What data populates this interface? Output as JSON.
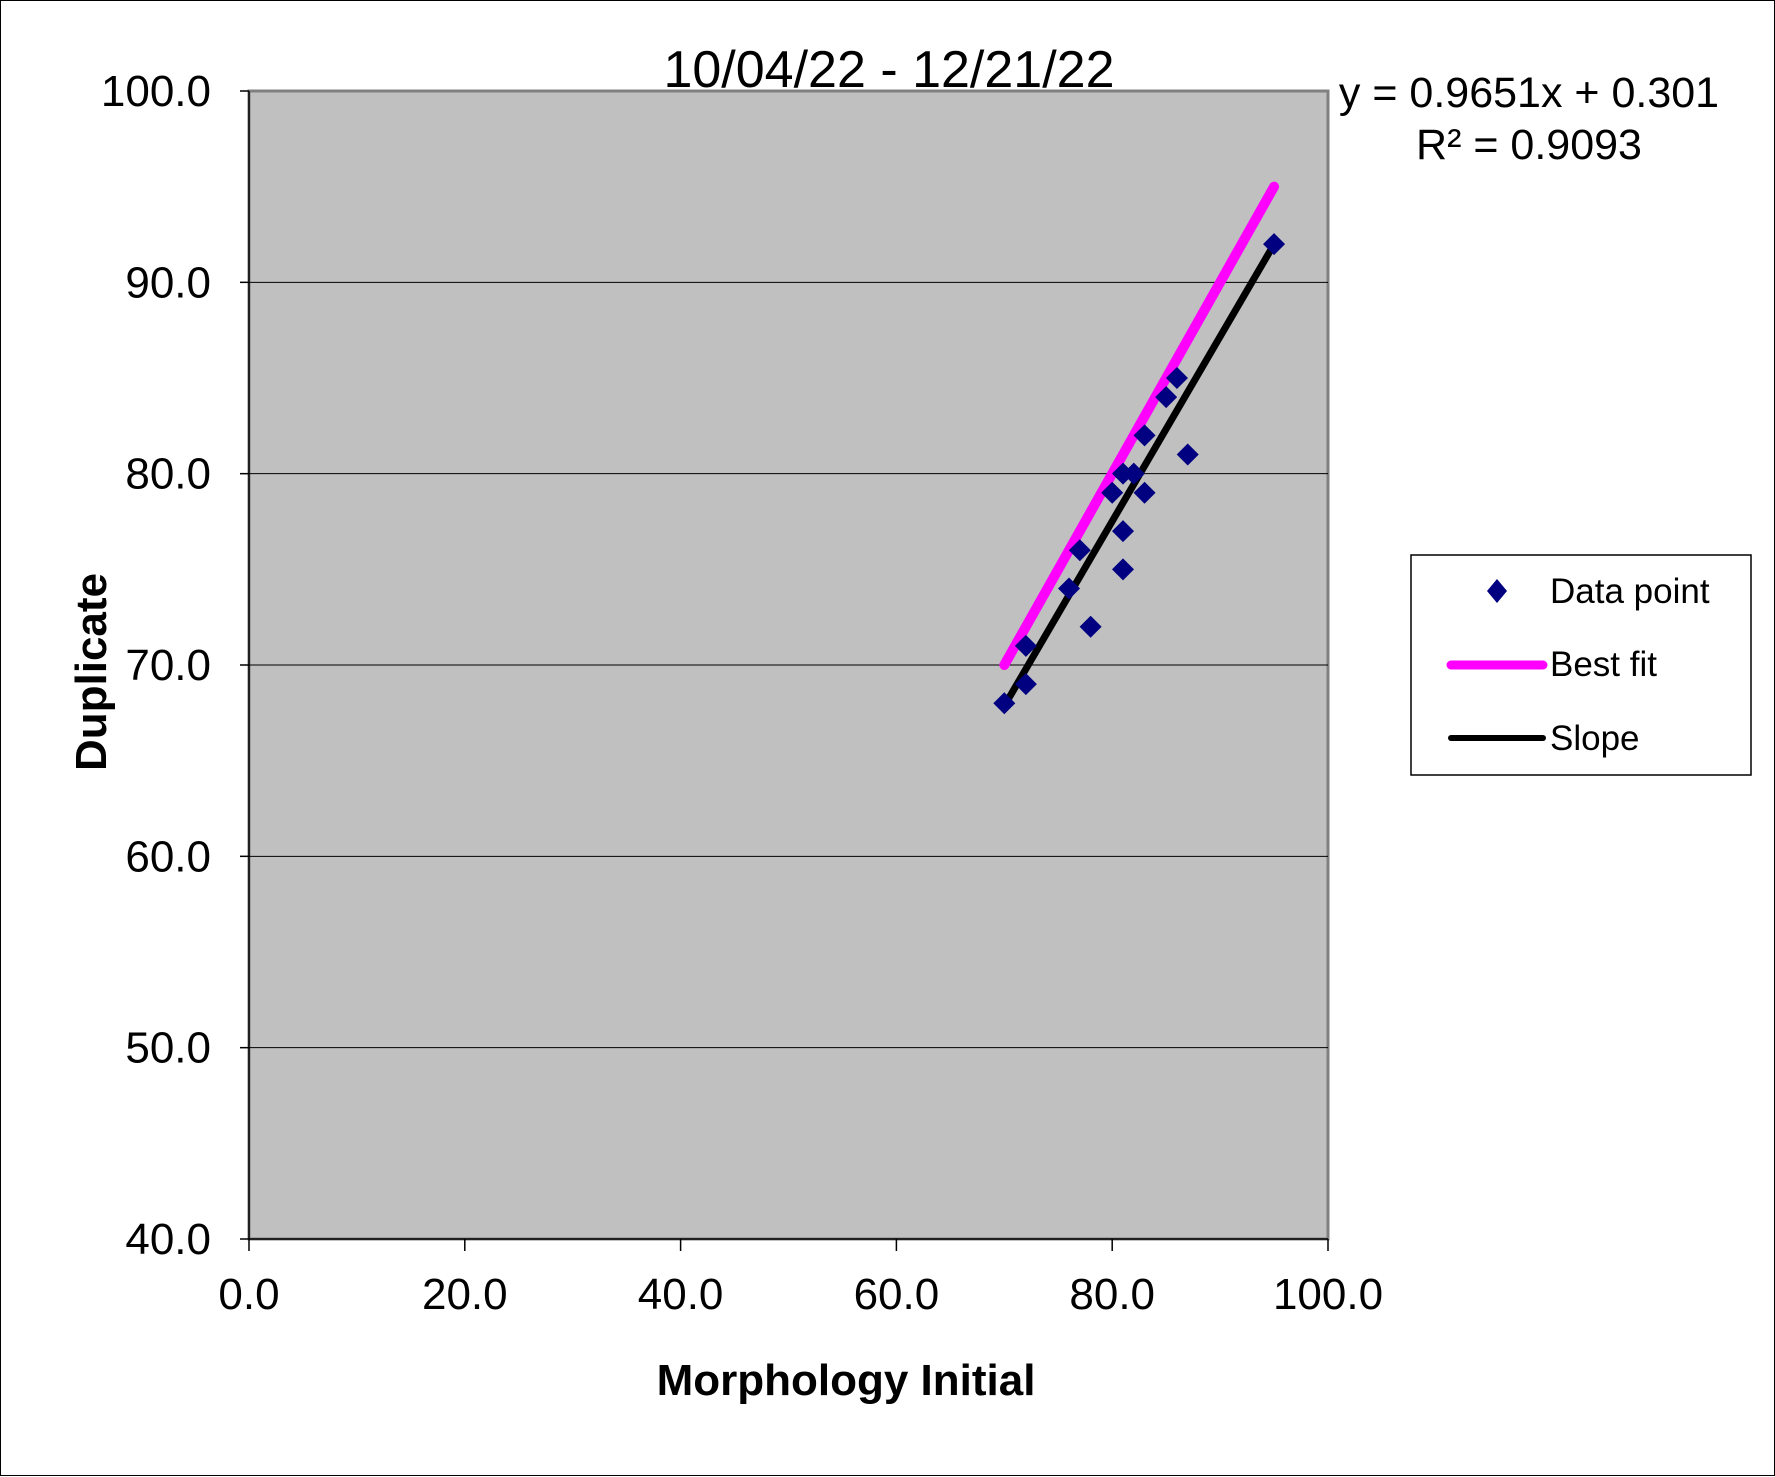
{
  "chart_data": {
    "type": "scatter",
    "title": "10/04/22 - 12/21/22",
    "xlabel": "Morphology Initial",
    "ylabel": "Duplicate",
    "xlim": [
      0,
      100
    ],
    "ylim": [
      40,
      100
    ],
    "x_ticks": [
      "0.0",
      "20.0",
      "40.0",
      "60.0",
      "80.0",
      "100.0"
    ],
    "y_ticks": [
      "40.0",
      "50.0",
      "60.0",
      "70.0",
      "80.0",
      "90.0",
      "100.0"
    ],
    "grid": "horizontal",
    "legend_position": "right",
    "trendline_equation": "y = 0.9651x + 0.301",
    "r_squared": "R² = 0.9093",
    "series": [
      {
        "name": "Data point",
        "kind": "scatter",
        "marker": "diamond",
        "color": "#000080",
        "points": [
          [
            70,
            68
          ],
          [
            72,
            71
          ],
          [
            72,
            69
          ],
          [
            76,
            74
          ],
          [
            77,
            76
          ],
          [
            78,
            72
          ],
          [
            80,
            79
          ],
          [
            81,
            80
          ],
          [
            81,
            77
          ],
          [
            81,
            75
          ],
          [
            82,
            80
          ],
          [
            83,
            82
          ],
          [
            83,
            79
          ],
          [
            85,
            84
          ],
          [
            86,
            85
          ],
          [
            87,
            81
          ],
          [
            95,
            92
          ]
        ]
      },
      {
        "name": "Best fit",
        "kind": "line",
        "color": "#ff00ff",
        "points": [
          [
            70,
            70
          ],
          [
            95,
            95
          ]
        ]
      },
      {
        "name": "Slope",
        "kind": "line",
        "color": "#000000",
        "points": [
          [
            70,
            67.86
          ],
          [
            95,
            91.99
          ]
        ]
      }
    ]
  },
  "colors": {
    "plot_background": "#c0c0c0",
    "gridline": "#000000",
    "axis": "#808080"
  }
}
